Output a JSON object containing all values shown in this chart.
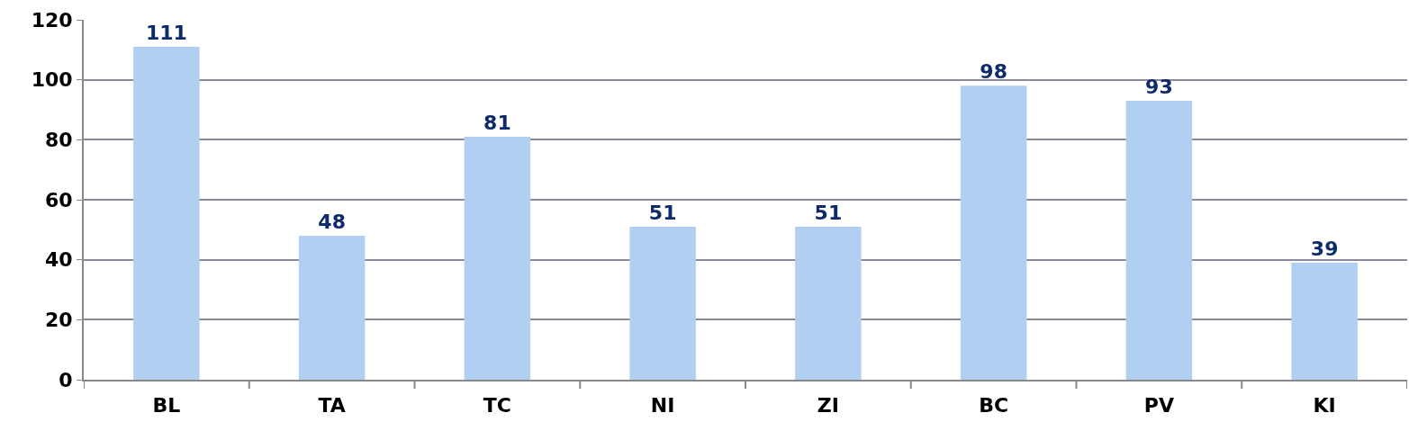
{
  "chart_data": {
    "type": "bar",
    "categories": [
      "BL",
      "TA",
      "TC",
      "NI",
      "ZI",
      "BC",
      "PV",
      "KI"
    ],
    "values": [
      111,
      48,
      81,
      51,
      51,
      98,
      93,
      39
    ],
    "color": "#b1cff0",
    "ylim": [
      0,
      120
    ],
    "yticks": [
      0,
      20,
      40,
      60,
      80,
      100,
      120
    ],
    "grid": "y",
    "data_labels": true
  }
}
